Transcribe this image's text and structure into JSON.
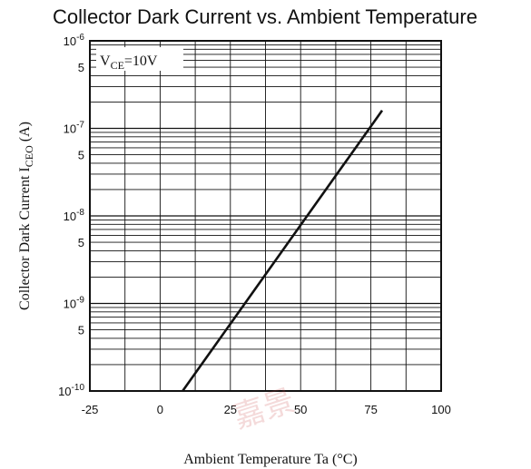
{
  "chart_data": {
    "type": "line",
    "title": "Collector Dark Current vs. Ambient Temperature",
    "xlabel": "Ambient Temperature Ta (°C)",
    "ylabel": {
      "main": "Collector Dark Current I",
      "sub": "CEO",
      "unit": " (A)"
    },
    "x_ticks": [
      "-25",
      "0",
      "25",
      "50",
      "75",
      "100"
    ],
    "y_scale": "log",
    "y_tick_labels": [
      {
        "base": "10",
        "exp": "-10",
        "value": 1e-10
      },
      {
        "base": "5",
        "exp": "",
        "value": 5e-10
      },
      {
        "base": "10",
        "exp": "-9",
        "value": 1e-09
      },
      {
        "base": "5",
        "exp": "",
        "value": 5e-09
      },
      {
        "base": "10",
        "exp": "-8",
        "value": 1e-08
      },
      {
        "base": "5",
        "exp": "",
        "value": 5e-08
      },
      {
        "base": "10",
        "exp": "-7",
        "value": 1e-07
      },
      {
        "base": "5",
        "exp": "",
        "value": 5e-07
      },
      {
        "base": "10",
        "exp": "-6",
        "value": 1e-06
      }
    ],
    "xlim": [
      -25,
      100
    ],
    "ylim": [
      1e-10,
      1e-06
    ],
    "grid": true,
    "annotation": {
      "main": "V",
      "sub": "CE",
      "rest": "=10V"
    },
    "series": [
      {
        "x": [
          8,
          79
        ],
        "y": [
          1e-10,
          1.6e-07
        ]
      }
    ]
  },
  "watermark": "嘉景"
}
